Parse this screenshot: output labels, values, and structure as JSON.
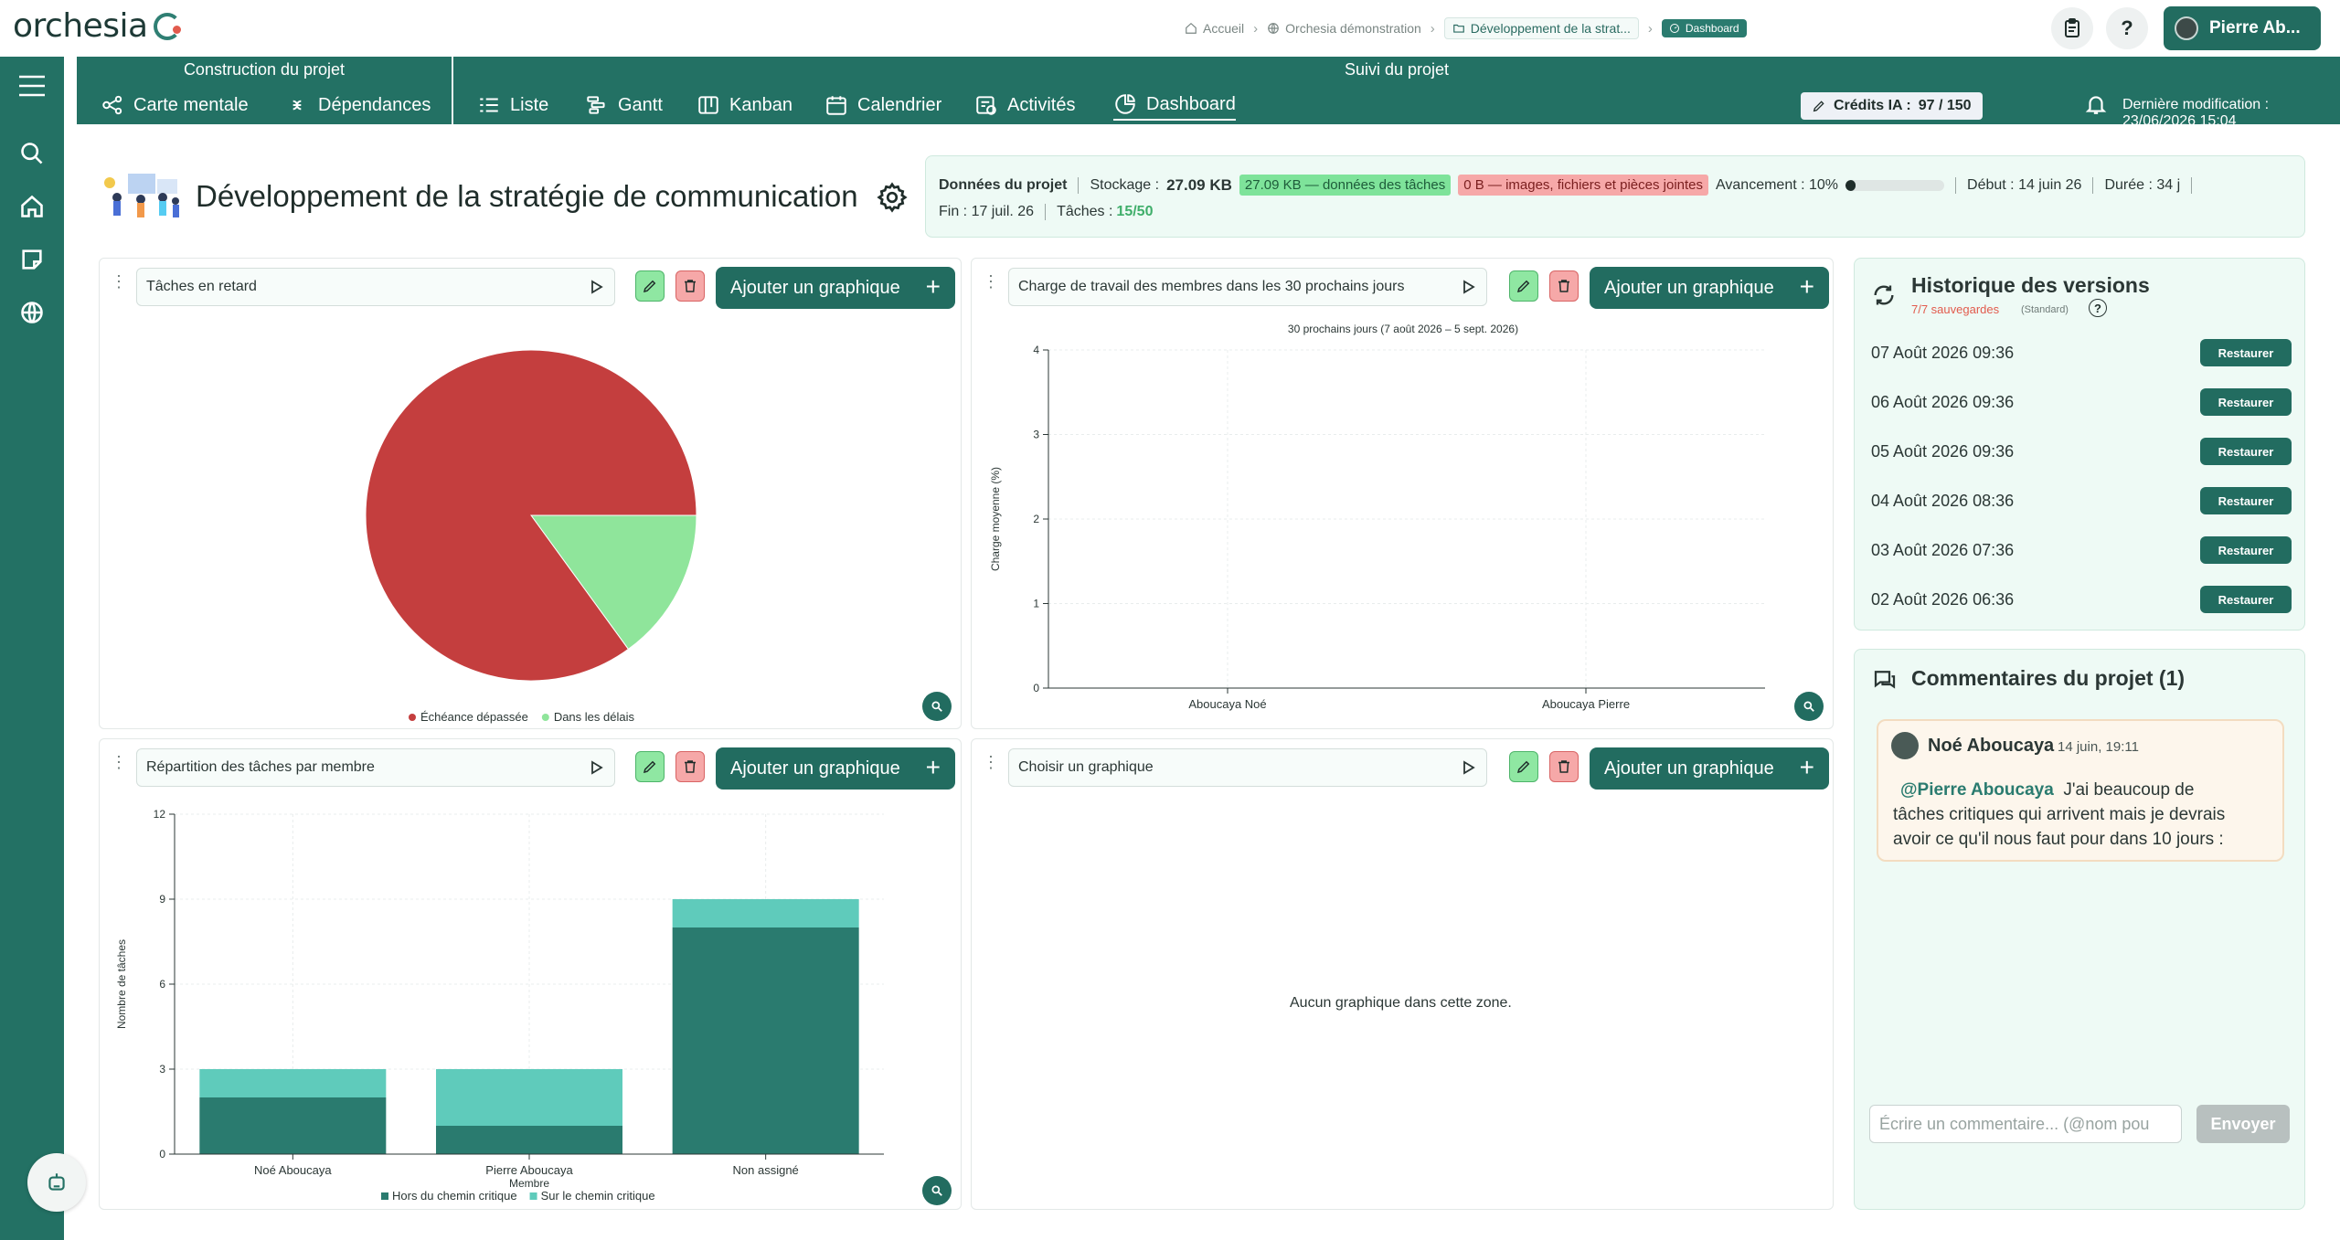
{
  "app": {
    "logo_text": "orchesia"
  },
  "breadcrumb": {
    "items": [
      "Accueil",
      "Orchesia démonstration",
      "Développement de la strat..."
    ],
    "current_badge": "Dashboard"
  },
  "user": {
    "name": "Pierre Ab..."
  },
  "nav": {
    "section_build": "Construction du projet",
    "section_follow": "Suivi du projet",
    "items": [
      {
        "label": "Carte mentale",
        "icon": "mind-map-icon"
      },
      {
        "label": "Dépendances",
        "icon": "dependencies-icon"
      },
      {
        "label": "Liste",
        "icon": "list-icon"
      },
      {
        "label": "Gantt",
        "icon": "gantt-icon"
      },
      {
        "label": "Kanban",
        "icon": "kanban-icon"
      },
      {
        "label": "Calendrier",
        "icon": "calendar-icon"
      },
      {
        "label": "Activités",
        "icon": "activities-icon"
      },
      {
        "label": "Dashboard",
        "icon": "dashboard-icon"
      }
    ],
    "credits_label": "Crédits IA :",
    "credits_value": "97 / 150",
    "last_modified": "Dernière modification : 23/06/2026 15:04"
  },
  "project": {
    "title": "Développement de la stratégie de communication",
    "data_label": "Données du projet",
    "storage_label": "Stockage :",
    "storage_value": "27.09 KB",
    "tasks_data_tag": "27.09 KB — données des tâches",
    "files_tag": "0 B — images, fichiers et pièces jointes",
    "progress_label": "Avancement : 10%",
    "progress_fraction": 0.1,
    "start": "Début : 14 juin 26",
    "duration": "Durée : 34 j",
    "end": "Fin : 17 juil. 26",
    "tasks_label": "Tâches :",
    "tasks_value": "15/50"
  },
  "cards": {
    "add_label": "Ajouter un graphique",
    "c1_select": "Tâches en retard",
    "c2_select": "Charge de travail des membres dans les 30 prochains jours",
    "c3_select": "Répartition des tâches par membre",
    "c4_select": "Choisir un graphique",
    "c4_empty": "Aucun graphique dans cette zone."
  },
  "chart_data": [
    {
      "type": "pie",
      "title": "",
      "slices": [
        {
          "label": "Échéance dépassée",
          "value": 85,
          "color": "#c43e3e"
        },
        {
          "label": "Dans les délais",
          "value": 15,
          "color": "#8fe59b"
        }
      ],
      "legend": "bottom"
    },
    {
      "type": "bar",
      "title": "30 prochains jours (7 août 2026 – 5 sept. 2026)",
      "categories": [
        "Aboucaya Noé",
        "Aboucaya Pierre"
      ],
      "values": [
        0,
        0
      ],
      "ylabel": "Charge moyenne (%)",
      "ylim": [
        0,
        4
      ],
      "yticks": [
        "0",
        "1",
        "2",
        "3",
        "4"
      ],
      "grid": true
    },
    {
      "type": "bar",
      "stacked": true,
      "categories": [
        "Noé Aboucaya",
        "Pierre Aboucaya",
        "Non assigné"
      ],
      "series": [
        {
          "name": "Hors du chemin critique",
          "values": [
            2,
            1,
            8
          ],
          "color": "#2a7b6f"
        },
        {
          "name": "Sur le chemin critique",
          "values": [
            1,
            2,
            1
          ],
          "color": "#5fcbbb"
        }
      ],
      "xlabel": "Membre",
      "ylabel": "Nombre de tâches",
      "ylim": [
        0,
        12
      ],
      "yticks": [
        "0",
        "3",
        "6",
        "9",
        "12"
      ],
      "grid": true,
      "legend": "bottom"
    }
  ],
  "versions": {
    "title": "Historique des versions",
    "saved": "7/7 sauvegardes",
    "plan": "(Standard)",
    "restore_label": "Restaurer",
    "items": [
      "07 Août 2026 09:36",
      "06 Août 2026 09:36",
      "05 Août 2026 09:36",
      "04 Août 2026 08:36",
      "03 Août 2026 07:36",
      "02 Août 2026 06:36"
    ]
  },
  "comments": {
    "title": "Commentaires du projet (1)",
    "author": "Noé Aboucaya",
    "date": "14 juin, 19:11",
    "mention": "@Pierre Aboucaya",
    "line1": "J'ai beaucoup de",
    "line2": "tâches critiques qui arrivent mais je devrais",
    "line3": "avoir ce qu'il nous faut pour dans 10 jours :",
    "input_placeholder": "Écrire un commentaire... (@nom pou",
    "send_label": "Envoyer"
  }
}
